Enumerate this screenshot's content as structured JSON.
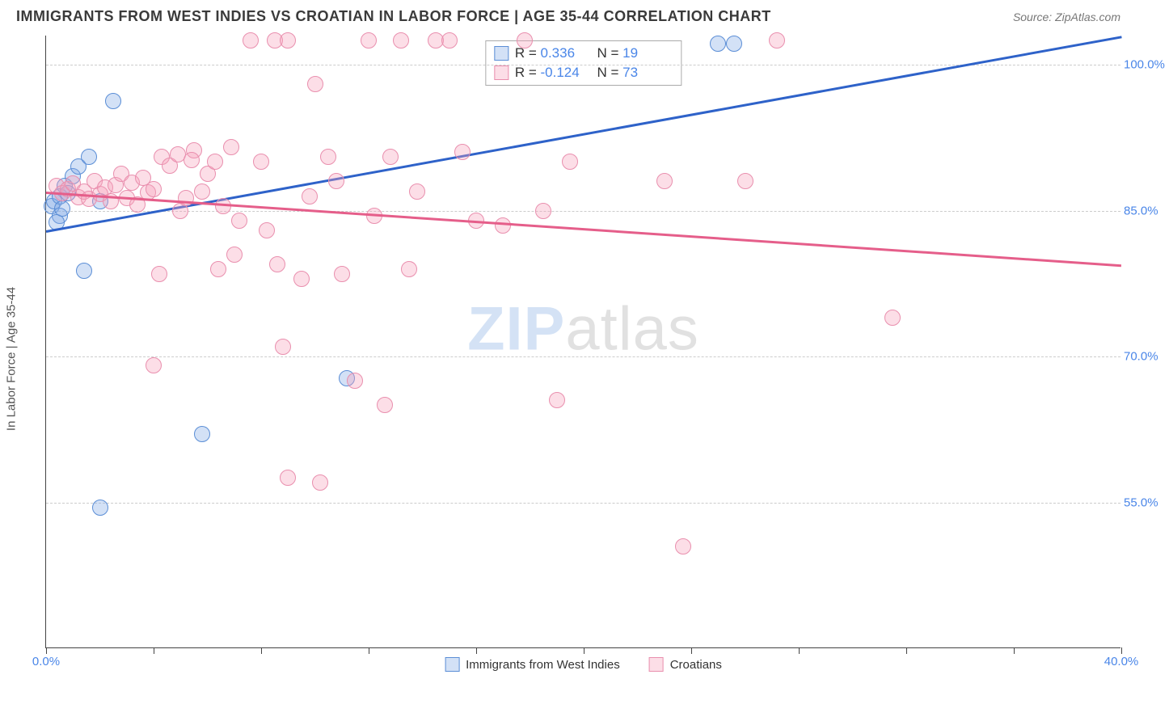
{
  "title": "IMMIGRANTS FROM WEST INDIES VS CROATIAN IN LABOR FORCE | AGE 35-44 CORRELATION CHART",
  "source": "Source: ZipAtlas.com",
  "ylabel": "In Labor Force | Age 35-44",
  "watermark_a": "ZIP",
  "watermark_b": "atlas",
  "chart": {
    "type": "scatter",
    "xlim": [
      0,
      40
    ],
    "ylim": [
      40,
      103
    ],
    "xtick_labels": [
      "0.0%",
      "40.0%"
    ],
    "xtick_positions": [
      0,
      40
    ],
    "xtickmark_positions": [
      0,
      4,
      8,
      12,
      16,
      20,
      24,
      28,
      32,
      36,
      40
    ],
    "ytick_labels": [
      "55.0%",
      "70.0%",
      "85.0%",
      "100.0%"
    ],
    "ytick_positions": [
      55,
      70,
      85,
      100
    ],
    "grid_color": "#cccccc",
    "background_color": "#ffffff",
    "axis_color": "#444444",
    "marker_radius": 10,
    "series": [
      {
        "name": "Immigrants from West Indies",
        "fill": "rgba(130,170,230,0.35)",
        "stroke": "#5b8ed6",
        "line_color": "#2e62c9",
        "R": "0.336",
        "N": "19",
        "regression": {
          "x1": 0,
          "y1": 83,
          "x2": 40,
          "y2": 103
        },
        "points": [
          [
            0.2,
            85.5
          ],
          [
            0.3,
            86
          ],
          [
            0.5,
            86.5
          ],
          [
            0.5,
            84.5
          ],
          [
            0.7,
            87.5
          ],
          [
            0.8,
            86.8
          ],
          [
            1.0,
            88.5
          ],
          [
            1.2,
            89.5
          ],
          [
            1.4,
            78.8
          ],
          [
            1.6,
            90.5
          ],
          [
            2.0,
            86
          ],
          [
            2.5,
            96.3
          ],
          [
            2.0,
            54.5
          ],
          [
            5.8,
            62.0
          ],
          [
            11.2,
            67.8
          ],
          [
            25.0,
            102.2
          ],
          [
            25.6,
            102.2
          ],
          [
            0.4,
            83.8
          ],
          [
            0.6,
            85.2
          ]
        ]
      },
      {
        "name": "Croatians",
        "fill": "rgba(245,160,185,0.35)",
        "stroke": "#e98fae",
        "line_color": "#e55e8a",
        "R": "-0.124",
        "N": "73",
        "regression": {
          "x1": 0,
          "y1": 87,
          "x2": 40,
          "y2": 79.5
        },
        "points": [
          [
            0.4,
            87.5
          ],
          [
            0.6,
            86.8
          ],
          [
            0.8,
            87.2
          ],
          [
            1.0,
            87.8
          ],
          [
            1.2,
            86.4
          ],
          [
            1.4,
            87.0
          ],
          [
            1.6,
            86.2
          ],
          [
            1.8,
            88.0
          ],
          [
            2.0,
            86.7
          ],
          [
            2.2,
            87.4
          ],
          [
            2.4,
            86.0
          ],
          [
            2.6,
            87.6
          ],
          [
            2.8,
            88.8
          ],
          [
            3.0,
            86.3
          ],
          [
            3.2,
            87.9
          ],
          [
            3.4,
            85.6
          ],
          [
            3.6,
            88.4
          ],
          [
            3.8,
            86.9
          ],
          [
            4.0,
            87.2
          ],
          [
            4.3,
            90.5
          ],
          [
            4.6,
            89.6
          ],
          [
            4.9,
            90.8
          ],
          [
            5.2,
            86.3
          ],
          [
            5.5,
            91.2
          ],
          [
            4.2,
            78.5
          ],
          [
            4.0,
            69.1
          ],
          [
            5.0,
            85.0
          ],
          [
            5.4,
            90.2
          ],
          [
            5.8,
            87.0
          ],
          [
            6.0,
            88.8
          ],
          [
            6.3,
            90.0
          ],
          [
            6.6,
            85.5
          ],
          [
            6.9,
            91.5
          ],
          [
            7.2,
            84.0
          ],
          [
            7.6,
            102.5
          ],
          [
            8.0,
            90.0
          ],
          [
            8.2,
            83.0
          ],
          [
            8.5,
            102.5
          ],
          [
            8.8,
            71.0
          ],
          [
            9.0,
            57.5
          ],
          [
            9.0,
            102.5
          ],
          [
            9.5,
            78.0
          ],
          [
            9.8,
            86.5
          ],
          [
            10.0,
            98.0
          ],
          [
            10.2,
            57.0
          ],
          [
            10.5,
            90.5
          ],
          [
            10.8,
            88.0
          ],
          [
            11.0,
            78.5
          ],
          [
            11.5,
            67.5
          ],
          [
            12.0,
            102.5
          ],
          [
            12.2,
            84.5
          ],
          [
            12.6,
            65.0
          ],
          [
            12.8,
            90.5
          ],
          [
            13.2,
            102.5
          ],
          [
            13.8,
            87.0
          ],
          [
            14.5,
            102.5
          ],
          [
            15.0,
            102.5
          ],
          [
            15.5,
            91.0
          ],
          [
            16.0,
            84.0
          ],
          [
            17.0,
            83.5
          ],
          [
            17.8,
            102.5
          ],
          [
            18.5,
            85.0
          ],
          [
            19.0,
            65.5
          ],
          [
            19.5,
            90.0
          ],
          [
            23.0,
            88.0
          ],
          [
            23.7,
            50.5
          ],
          [
            26.0,
            88.0
          ],
          [
            27.2,
            102.5
          ],
          [
            31.5,
            74.0
          ],
          [
            6.4,
            79.0
          ],
          [
            7.0,
            80.5
          ],
          [
            8.6,
            79.5
          ],
          [
            13.5,
            79.0
          ]
        ]
      }
    ]
  },
  "legend_top": {
    "r_label": "R = ",
    "n_label": "N = "
  }
}
